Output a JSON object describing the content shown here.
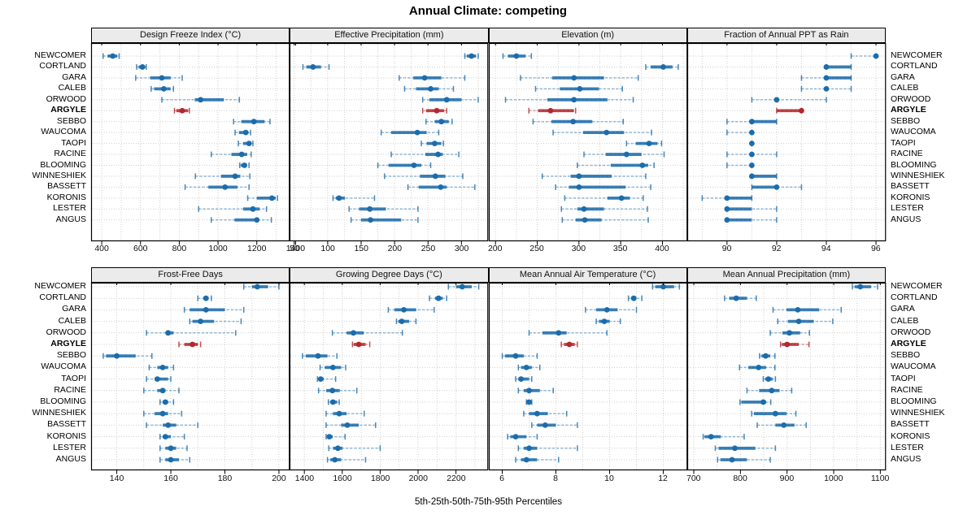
{
  "title": "Annual Climate: competing",
  "xlabel": "5th-25th-50th-75th-95th Percentiles",
  "highlight_location": "ARGYLE",
  "percentile_labels": [
    "5th",
    "25th",
    "50th",
    "75th",
    "95th"
  ],
  "locations": [
    "NEWCOMER",
    "CORTLAND",
    "GARA",
    "CALEB",
    "ORWOOD",
    "ARGYLE",
    "SEBBO",
    "WAUCOMA",
    "TAOPI",
    "RACINE",
    "BLOOMING",
    "WINNESHIEK",
    "BASSETT",
    "KORONIS",
    "LESTER",
    "ANGUS"
  ],
  "colors": {
    "series": "#1c6cab",
    "highlight": "#b3272b",
    "grid": "#cfcfcf",
    "frame": "#000000",
    "strip_bg": "#ebebeb",
    "text": "#000000"
  },
  "chart_data": [
    {
      "type": "dotplot-interval",
      "title": "Design Freeze Index (°C)",
      "slug": "design-freeze-index",
      "domain": [
        345,
        1370
      ],
      "ticks": [
        400,
        600,
        800,
        1000,
        1200,
        1400
      ],
      "minor": 100,
      "values": [
        [
          407,
          430,
          457,
          480,
          490
        ],
        [
          580,
          590,
          610,
          625,
          630
        ],
        [
          575,
          650,
          710,
          755,
          815
        ],
        [
          655,
          670,
          720,
          755,
          770
        ],
        [
          710,
          880,
          910,
          1030,
          1110
        ],
        [
          775,
          785,
          815,
          845,
          852
        ],
        [
          1080,
          1120,
          1185,
          1240,
          1268
        ],
        [
          1088,
          1108,
          1143,
          1157,
          1168
        ],
        [
          1105,
          1129,
          1160,
          1171,
          1180
        ],
        [
          965,
          1069,
          1122,
          1150,
          1171
        ],
        [
          1112,
          1118,
          1136,
          1150,
          1160
        ],
        [
          883,
          1015,
          1088,
          1115,
          1164
        ],
        [
          830,
          950,
          1036,
          1100,
          1160
        ],
        [
          1153,
          1200,
          1278,
          1298,
          1307
        ],
        [
          900,
          1130,
          1180,
          1215,
          1250
        ],
        [
          965,
          1085,
          1200,
          1212,
          1275
        ]
      ]
    },
    {
      "type": "dotplot-interval",
      "title": "Effective Precipitation (mm)",
      "slug": "effective-precipitation",
      "domain": [
        43,
        340
      ],
      "ticks": [
        50,
        100,
        150,
        200,
        250,
        300
      ],
      "minor": 25,
      "values": [
        [
          305,
          308,
          315,
          322,
          325
        ],
        [
          63,
          68,
          78,
          90,
          102
        ],
        [
          207,
          228,
          245,
          270,
          305
        ],
        [
          215,
          232,
          254,
          266,
          288
        ],
        [
          242,
          252,
          278,
          300,
          325
        ],
        [
          242,
          247,
          263,
          274,
          278
        ],
        [
          247,
          260,
          270,
          281,
          286
        ],
        [
          180,
          195,
          234,
          248,
          266
        ],
        [
          240,
          248,
          260,
          270,
          273
        ],
        [
          195,
          246,
          265,
          272,
          296
        ],
        [
          175,
          191,
          229,
          240,
          254
        ],
        [
          185,
          238,
          261,
          276,
          302
        ],
        [
          220,
          236,
          269,
          278,
          320
        ],
        [
          108,
          112,
          117,
          126,
          170
        ],
        [
          132,
          147,
          163,
          187,
          235
        ],
        [
          135,
          150,
          164,
          210,
          235
        ]
      ]
    },
    {
      "type": "dotplot-interval",
      "title": "Elevation (m)",
      "slug": "elevation",
      "domain": [
        192,
        430
      ],
      "ticks": [
        200,
        250,
        300,
        350,
        400
      ],
      "minor": 25,
      "values": [
        [
          209,
          215,
          225,
          236,
          243
        ],
        [
          380,
          386,
          401,
          412,
          419
        ],
        [
          230,
          268,
          294,
          330,
          371
        ],
        [
          248,
          277,
          301,
          324,
          352
        ],
        [
          212,
          262,
          294,
          334,
          365
        ],
        [
          240,
          251,
          266,
          294,
          296
        ],
        [
          245,
          267,
          293,
          316,
          353
        ],
        [
          269,
          305,
          333,
          354,
          387
        ],
        [
          357,
          368,
          384,
          394,
          399
        ],
        [
          306,
          332,
          357,
          375,
          402
        ],
        [
          298,
          338,
          376,
          383,
          390
        ],
        [
          256,
          290,
          300,
          339,
          380
        ],
        [
          272,
          288,
          300,
          356,
          386
        ],
        [
          283,
          334,
          351,
          361,
          377
        ],
        [
          279,
          298,
          306,
          330,
          382
        ],
        [
          280,
          296,
          307,
          327,
          383
        ]
      ]
    },
    {
      "type": "dotplot-interval",
      "title": "Fraction of Annual PPT as Rain",
      "slug": "fraction-of-annual-ppt-as-rain",
      "domain": [
        88.4,
        96.4
      ],
      "ticks": [
        90,
        92,
        94,
        96
      ],
      "minor": 1,
      "values": [
        [
          95,
          96,
          96,
          96,
          96
        ],
        [
          94,
          94,
          94,
          95,
          95
        ],
        [
          93,
          94,
          94,
          95,
          95
        ],
        [
          93,
          94,
          94,
          94,
          95
        ],
        [
          91,
          92,
          92,
          92,
          94
        ],
        [
          92,
          92,
          93,
          93,
          93
        ],
        [
          90,
          91,
          91,
          92,
          92
        ],
        [
          90,
          91,
          91,
          91,
          91
        ],
        [
          91,
          91,
          91,
          91,
          91
        ],
        [
          90,
          91,
          91,
          91,
          92
        ],
        [
          90,
          91,
          91,
          91,
          91
        ],
        [
          91,
          91,
          91,
          92,
          92
        ],
        [
          91,
          91,
          92,
          92,
          93
        ],
        [
          89,
          90,
          90,
          91,
          91
        ],
        [
          90,
          90,
          90,
          91,
          92
        ],
        [
          90,
          90,
          90,
          91,
          92
        ]
      ]
    },
    {
      "type": "dotplot-interval",
      "title": "Frost-Free Days",
      "slug": "frost-free-days",
      "domain": [
        130.5,
        204
      ],
      "ticks": [
        140,
        160,
        180,
        200
      ],
      "minor": 10,
      "values": [
        [
          187,
          190,
          192,
          196,
          200
        ],
        [
          170,
          172,
          173,
          174,
          175
        ],
        [
          165,
          167,
          173,
          180,
          187
        ],
        [
          167,
          168,
          171,
          176,
          186
        ],
        [
          151,
          158,
          159,
          161,
          184
        ],
        [
          163,
          165,
          168,
          170,
          171
        ],
        [
          135,
          136,
          140,
          147,
          153
        ],
        [
          152,
          155,
          157,
          159,
          161
        ],
        [
          151,
          154,
          155,
          159,
          160
        ],
        [
          150,
          155,
          157,
          158,
          163
        ],
        [
          156,
          157,
          158,
          159,
          161
        ],
        [
          150,
          154,
          157,
          159,
          164
        ],
        [
          151,
          157,
          159,
          162,
          170
        ],
        [
          156,
          157,
          158,
          160,
          165
        ],
        [
          156,
          158,
          160,
          162,
          166
        ],
        [
          156,
          158,
          160,
          163,
          167
        ]
      ]
    },
    {
      "type": "dotplot-interval",
      "title": "Growing Degree Days (°C)",
      "slug": "growing-degree-days",
      "domain": [
        1322,
        2370
      ],
      "ticks": [
        1400,
        1600,
        1800,
        2000,
        2200
      ],
      "minor": 100,
      "values": [
        [
          2160,
          2200,
          2233,
          2283,
          2320
        ],
        [
          2060,
          2090,
          2108,
          2130,
          2151
        ],
        [
          1843,
          1875,
          1925,
          1990,
          2085
        ],
        [
          1886,
          1896,
          1914,
          1953,
          1989
        ],
        [
          1548,
          1623,
          1659,
          1713,
          1917
        ],
        [
          1654,
          1660,
          1687,
          1723,
          1745
        ],
        [
          1390,
          1407,
          1472,
          1522,
          1572
        ],
        [
          1483,
          1508,
          1551,
          1594,
          1618
        ],
        [
          1469,
          1474,
          1486,
          1503,
          1565
        ],
        [
          1475,
          1515,
          1548,
          1587,
          1677
        ],
        [
          1527,
          1537,
          1551,
          1573,
          1584
        ],
        [
          1515,
          1551,
          1584,
          1623,
          1716
        ],
        [
          1515,
          1594,
          1627,
          1687,
          1776
        ],
        [
          1515,
          1520,
          1532,
          1550,
          1615
        ],
        [
          1529,
          1551,
          1577,
          1601,
          1800
        ],
        [
          1522,
          1537,
          1561,
          1594,
          1723
        ]
      ]
    },
    {
      "type": "dotplot-interval",
      "title": "Mean Annual Air Temperature (°C)",
      "slug": "mean-annual-air-temperature",
      "domain": [
        5.5,
        12.9
      ],
      "ticks": [
        6,
        8,
        10,
        12
      ],
      "minor": 1,
      "values": [
        [
          11.6,
          11.7,
          12.0,
          12.4,
          12.6
        ],
        [
          10.7,
          10.8,
          10.9,
          11.0,
          11.2
        ],
        [
          9.1,
          9.5,
          9.9,
          10.3,
          11.0
        ],
        [
          9.5,
          9.6,
          9.8,
          10.0,
          10.4
        ],
        [
          7.0,
          7.5,
          8.1,
          8.4,
          9.9
        ],
        [
          8.2,
          8.3,
          8.5,
          8.7,
          8.8
        ],
        [
          6.0,
          6.1,
          6.5,
          6.8,
          7.3
        ],
        [
          6.6,
          6.7,
          6.9,
          7.1,
          7.4
        ],
        [
          6.5,
          6.6,
          6.7,
          7.0,
          7.1
        ],
        [
          6.6,
          6.8,
          7.0,
          7.4,
          7.9
        ],
        [
          6.9,
          6.9,
          7.0,
          7.1,
          7.1
        ],
        [
          6.8,
          7.0,
          7.3,
          7.7,
          8.4
        ],
        [
          7.1,
          7.3,
          7.6,
          8.0,
          8.8
        ],
        [
          6.2,
          6.3,
          6.5,
          6.9,
          7.3
        ],
        [
          6.6,
          6.8,
          7.0,
          7.3,
          8.8
        ],
        [
          6.5,
          6.7,
          6.9,
          7.3,
          8.1
        ]
      ]
    },
    {
      "type": "dotplot-interval",
      "title": "Mean Annual Precipitation (mm)",
      "slug": "mean-annual-precipitation",
      "domain": [
        686,
        1112
      ],
      "ticks": [
        700,
        800,
        900,
        1000,
        1100
      ],
      "minor": 50,
      "values": [
        [
          1040,
          1045,
          1057,
          1080,
          1094
        ],
        [
          766,
          776,
          791,
          814,
          834
        ],
        [
          870,
          899,
          923,
          969,
          1016
        ],
        [
          880,
          902,
          925,
          957,
          998
        ],
        [
          864,
          890,
          905,
          928,
          948
        ],
        [
          886,
          889,
          900,
          925,
          947
        ],
        [
          841,
          845,
          854,
          864,
          874
        ],
        [
          798,
          817,
          839,
          855,
          874
        ],
        [
          849,
          853,
          860,
          869,
          875
        ],
        [
          814,
          840,
          867,
          884,
          910
        ],
        [
          799,
          802,
          849,
          855,
          865
        ],
        [
          824,
          829,
          875,
          899,
          919
        ],
        [
          836,
          875,
          893,
          916,
          941
        ],
        [
          720,
          723,
          737,
          758,
          808
        ],
        [
          746,
          753,
          788,
          832,
          875
        ],
        [
          751,
          757,
          782,
          814,
          864
        ]
      ]
    }
  ]
}
